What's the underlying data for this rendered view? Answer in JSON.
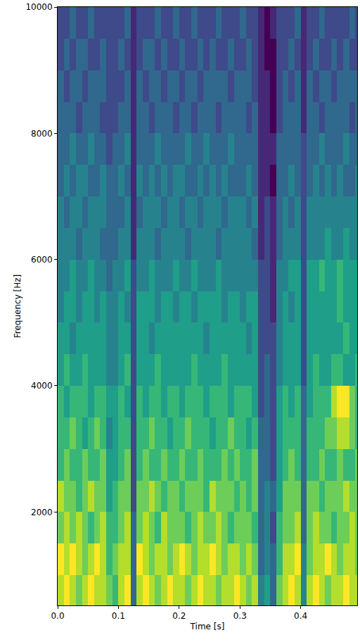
{
  "chart_data": {
    "type": "heatmap",
    "x_label": "Time [s]",
    "y_label": "Frequency [Hz]",
    "color": "Viridis",
    "xlim": [
      0,
      0.493
    ],
    "ylim": [
      520,
      10000
    ],
    "xticks": [
      {
        "value": 0,
        "label": "0.0"
      },
      {
        "value": 0.1,
        "label": "0.1"
      },
      {
        "value": 0.2,
        "label": "0.2"
      },
      {
        "value": 0.3,
        "label": "0.3"
      },
      {
        "value": 0.4,
        "label": "0.4"
      }
    ],
    "yticks": [
      2000,
      4000,
      6000,
      8000,
      10000
    ],
    "x": [
      0.005,
      0.015,
      0.025,
      0.035,
      0.045,
      0.055,
      0.065,
      0.075,
      0.085,
      0.095,
      0.105,
      0.115,
      0.125,
      0.135,
      0.145,
      0.155,
      0.165,
      0.175,
      0.185,
      0.195,
      0.205,
      0.215,
      0.225,
      0.235,
      0.245,
      0.255,
      0.265,
      0.275,
      0.285,
      0.295,
      0.305,
      0.315,
      0.325,
      0.335,
      0.345,
      0.355,
      0.365,
      0.375,
      0.385,
      0.395,
      0.405,
      0.415,
      0.425,
      0.435,
      0.445,
      0.455,
      0.465,
      0.475,
      0.485,
      0.495
    ],
    "y": [
      750,
      1250,
      1750,
      2250,
      2750,
      3250,
      3750,
      4250,
      4750,
      5250,
      5750,
      6250,
      6750,
      7250,
      7750,
      8250,
      8750,
      9250,
      9750
    ],
    "values": [
      [
        8,
        9,
        8,
        7,
        8,
        9,
        8,
        8,
        7,
        6,
        8,
        9,
        3,
        8,
        9,
        8,
        7,
        8,
        9,
        8,
        8,
        7,
        8,
        9,
        8,
        8,
        7,
        8,
        8,
        9,
        8,
        7,
        8,
        4,
        5,
        3,
        7,
        8,
        9,
        8,
        4,
        8,
        9,
        8,
        7,
        8,
        8,
        9,
        8,
        8
      ],
      [
        9,
        8,
        9,
        8,
        7,
        8,
        9,
        8,
        6,
        7,
        8,
        8,
        3,
        9,
        8,
        7,
        8,
        8,
        7,
        8,
        9,
        8,
        7,
        8,
        8,
        9,
        8,
        7,
        8,
        8,
        7,
        8,
        7,
        3,
        4,
        3,
        6,
        8,
        8,
        9,
        4,
        7,
        8,
        8,
        9,
        8,
        7,
        8,
        8,
        7
      ],
      [
        7,
        8,
        7,
        8,
        7,
        6,
        7,
        8,
        6,
        6,
        7,
        8,
        3,
        7,
        8,
        7,
        6,
        8,
        7,
        7,
        7,
        6,
        7,
        8,
        7,
        7,
        8,
        7,
        6,
        7,
        7,
        7,
        6,
        3,
        4,
        2,
        6,
        7,
        7,
        8,
        3,
        7,
        8,
        7,
        7,
        6,
        7,
        7,
        8,
        7
      ],
      [
        8,
        7,
        7,
        6,
        7,
        8,
        7,
        7,
        5,
        6,
        7,
        7,
        2,
        7,
        7,
        8,
        7,
        6,
        7,
        7,
        6,
        7,
        7,
        7,
        6,
        8,
        7,
        7,
        7,
        6,
        7,
        6,
        7,
        3,
        4,
        3,
        5,
        7,
        7,
        7,
        3,
        7,
        7,
        6,
        7,
        7,
        7,
        8,
        7,
        7
      ],
      [
        6,
        7,
        6,
        6,
        7,
        6,
        6,
        7,
        5,
        5,
        6,
        7,
        2,
        6,
        7,
        6,
        6,
        7,
        6,
        6,
        7,
        6,
        6,
        7,
        6,
        6,
        6,
        7,
        6,
        7,
        6,
        6,
        7,
        3,
        3,
        2,
        5,
        6,
        7,
        6,
        3,
        6,
        6,
        7,
        6,
        6,
        7,
        6,
        6,
        7
      ],
      [
        6,
        6,
        7,
        6,
        5,
        6,
        7,
        6,
        4,
        5,
        6,
        6,
        2,
        6,
        6,
        7,
        6,
        6,
        5,
        6,
        6,
        7,
        6,
        6,
        6,
        5,
        6,
        6,
        7,
        6,
        6,
        5,
        6,
        3,
        3,
        2,
        5,
        6,
        6,
        6,
        3,
        6,
        6,
        6,
        7,
        7,
        8,
        8,
        7,
        6
      ],
      [
        6,
        5,
        6,
        6,
        6,
        5,
        6,
        6,
        5,
        5,
        6,
        5,
        2,
        6,
        5,
        6,
        6,
        5,
        6,
        6,
        5,
        6,
        6,
        6,
        5,
        6,
        6,
        6,
        5,
        6,
        6,
        6,
        5,
        2,
        3,
        2,
        5,
        6,
        5,
        6,
        3,
        5,
        6,
        6,
        6,
        8,
        9,
        9,
        7,
        6
      ],
      [
        5,
        6,
        5,
        5,
        6,
        5,
        5,
        5,
        4,
        4,
        5,
        6,
        2,
        5,
        5,
        5,
        6,
        5,
        5,
        5,
        5,
        5,
        6,
        5,
        5,
        5,
        5,
        6,
        5,
        5,
        5,
        5,
        5,
        2,
        3,
        2,
        4,
        5,
        5,
        5,
        2,
        5,
        6,
        5,
        5,
        6,
        6,
        5,
        5,
        6
      ],
      [
        5,
        5,
        4,
        5,
        5,
        5,
        5,
        5,
        4,
        4,
        5,
        5,
        2,
        5,
        5,
        4,
        5,
        5,
        5,
        5,
        5,
        5,
        5,
        5,
        4,
        5,
        5,
        5,
        5,
        5,
        5,
        4,
        5,
        2,
        2,
        2,
        4,
        5,
        5,
        5,
        2,
        5,
        5,
        5,
        5,
        5,
        5,
        6,
        5,
        5
      ],
      [
        4,
        5,
        5,
        4,
        5,
        5,
        4,
        5,
        4,
        4,
        5,
        4,
        2,
        5,
        5,
        5,
        4,
        5,
        5,
        4,
        5,
        5,
        4,
        5,
        5,
        5,
        5,
        4,
        5,
        5,
        4,
        5,
        5,
        2,
        2,
        1,
        4,
        5,
        4,
        5,
        2,
        5,
        5,
        5,
        5,
        5,
        6,
        5,
        5,
        5
      ],
      [
        4,
        4,
        5,
        4,
        4,
        5,
        4,
        4,
        3,
        4,
        4,
        5,
        2,
        4,
        4,
        5,
        4,
        4,
        4,
        5,
        4,
        4,
        5,
        4,
        4,
        4,
        5,
        4,
        4,
        4,
        4,
        4,
        4,
        2,
        2,
        1,
        4,
        4,
        5,
        5,
        2,
        5,
        5,
        6,
        5,
        5,
        6,
        5,
        5,
        5
      ],
      [
        4,
        4,
        4,
        3,
        4,
        4,
        4,
        3,
        3,
        3,
        4,
        4,
        1,
        4,
        4,
        4,
        3,
        4,
        4,
        4,
        4,
        3,
        4,
        4,
        4,
        4,
        3,
        4,
        4,
        4,
        4,
        4,
        3,
        1,
        2,
        1,
        3,
        4,
        4,
        4,
        2,
        4,
        4,
        4,
        5,
        4,
        4,
        5,
        4,
        4
      ],
      [
        4,
        3,
        4,
        4,
        3,
        4,
        4,
        4,
        3,
        3,
        3,
        4,
        1,
        3,
        4,
        4,
        4,
        3,
        4,
        4,
        3,
        4,
        4,
        3,
        4,
        4,
        4,
        3,
        4,
        4,
        4,
        3,
        4,
        1,
        2,
        1,
        3,
        4,
        3,
        4,
        2,
        4,
        4,
        4,
        4,
        4,
        4,
        4,
        4,
        4
      ],
      [
        3,
        4,
        3,
        4,
        4,
        3,
        3,
        4,
        3,
        3,
        4,
        3,
        1,
        4,
        3,
        4,
        3,
        4,
        3,
        4,
        4,
        3,
        3,
        4,
        3,
        4,
        3,
        4,
        3,
        3,
        3,
        4,
        3,
        1,
        1,
        0,
        3,
        3,
        4,
        3,
        2,
        3,
        4,
        3,
        4,
        3,
        4,
        3,
        3,
        4
      ],
      [
        3,
        3,
        4,
        3,
        3,
        4,
        3,
        3,
        2,
        3,
        3,
        4,
        1,
        3,
        3,
        3,
        4,
        3,
        3,
        3,
        3,
        4,
        3,
        3,
        4,
        3,
        3,
        3,
        4,
        3,
        3,
        3,
        3,
        1,
        1,
        1,
        3,
        3,
        3,
        3,
        2,
        3,
        3,
        4,
        3,
        3,
        3,
        4,
        3,
        3
      ],
      [
        3,
        3,
        3,
        2,
        3,
        3,
        3,
        2,
        2,
        2,
        3,
        3,
        1,
        3,
        3,
        2,
        3,
        3,
        3,
        2,
        3,
        3,
        2,
        3,
        3,
        3,
        2,
        3,
        3,
        3,
        3,
        2,
        3,
        1,
        1,
        0,
        2,
        3,
        3,
        3,
        1,
        3,
        3,
        2,
        3,
        3,
        3,
        3,
        2,
        3
      ],
      [
        3,
        2,
        3,
        3,
        2,
        3,
        3,
        3,
        2,
        2,
        2,
        3,
        1,
        3,
        2,
        3,
        3,
        2,
        3,
        3,
        2,
        3,
        3,
        2,
        3,
        3,
        3,
        3,
        2,
        3,
        3,
        3,
        2,
        1,
        1,
        0,
        2,
        3,
        2,
        3,
        1,
        3,
        2,
        3,
        3,
        2,
        3,
        3,
        3,
        3
      ],
      [
        2,
        3,
        2,
        3,
        3,
        2,
        2,
        3,
        2,
        2,
        3,
        2,
        1,
        2,
        3,
        3,
        2,
        3,
        2,
        2,
        3,
        2,
        2,
        3,
        2,
        3,
        2,
        2,
        3,
        2,
        2,
        3,
        2,
        1,
        0,
        0,
        2,
        2,
        3,
        2,
        1,
        2,
        3,
        2,
        2,
        3,
        2,
        3,
        2,
        2
      ],
      [
        2,
        2,
        3,
        2,
        2,
        3,
        2,
        2,
        2,
        2,
        2,
        3,
        1,
        2,
        2,
        2,
        3,
        2,
        2,
        3,
        2,
        2,
        3,
        2,
        2,
        2,
        3,
        2,
        2,
        2,
        3,
        2,
        2,
        1,
        0,
        1,
        2,
        2,
        2,
        3,
        1,
        2,
        2,
        3,
        2,
        2,
        2,
        2,
        3,
        2
      ]
    ]
  }
}
